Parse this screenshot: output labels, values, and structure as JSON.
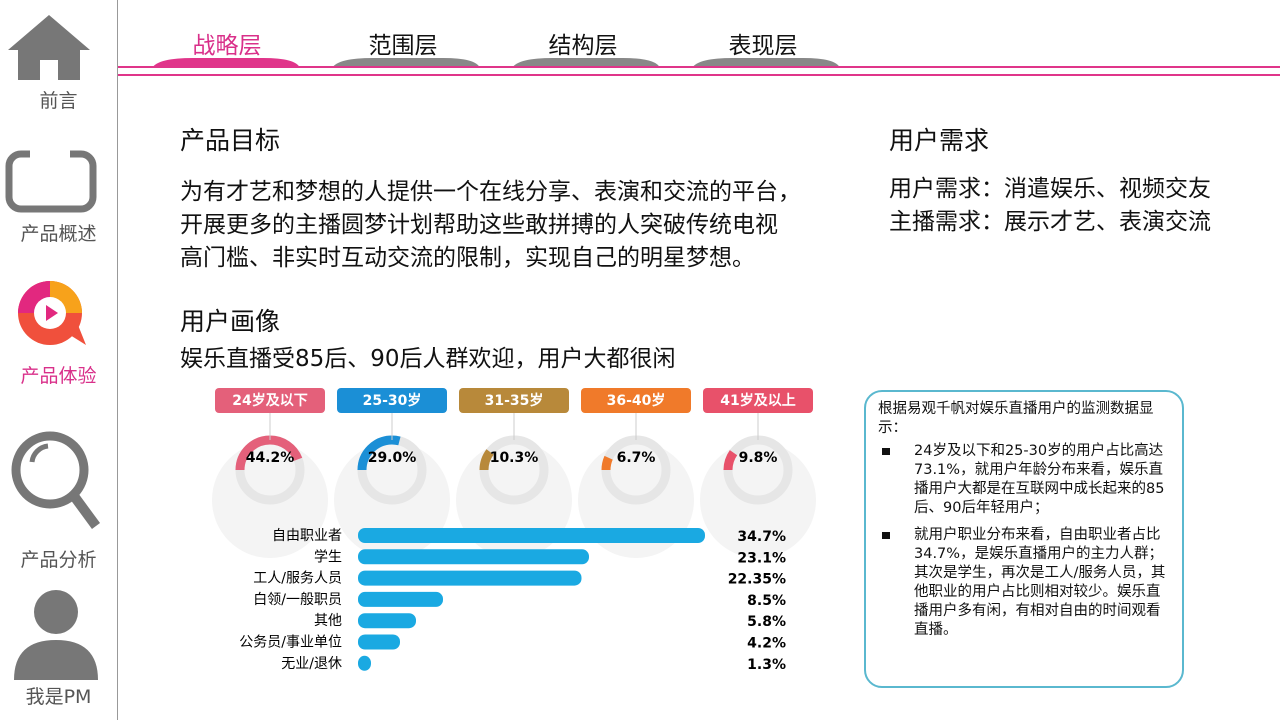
{
  "sidebar": {
    "items": [
      "前言",
      "产品概述",
      "产品体验",
      "产品分析",
      "我是PM"
    ]
  },
  "tabs": [
    "战略层",
    "范围层",
    "结构层",
    "表现层"
  ],
  "product_goal": {
    "title": "产品目标",
    "lines": [
      "为有才艺和梦想的人提供一个在线分享、表演和交流的平台，",
      "开展更多的主播圆梦计划帮助这些敢拼搏的人突破传统电视",
      "高门槛、非实时互动交流的限制，实现自己的明星梦想。"
    ]
  },
  "user_needs": {
    "title": "用户需求",
    "lines": [
      "用户需求：消遣娱乐、视频交友",
      "主播需求：展示才艺、表演交流"
    ]
  },
  "user_portrait": {
    "title": "用户画像",
    "subtitle": "娱乐直播受85后、90后人群欢迎，用户大都很闲"
  },
  "age_chart": {
    "type": "donut",
    "categories": [
      "24岁及以下",
      "25-30岁",
      "31-35岁",
      "36-40岁",
      "41岁及以上"
    ],
    "colors": [
      "#e4607a",
      "#1b8fd6",
      "#b8893a",
      "#f07a2a",
      "#e8516a"
    ],
    "values": [
      44.2,
      29.0,
      10.3,
      6.7,
      9.8
    ],
    "value_labels": [
      "44.2%",
      "29.0%",
      "10.3%",
      "6.7%",
      "9.8%"
    ]
  },
  "occupation_chart": {
    "type": "bar",
    "categories": [
      "自由职业者",
      "学生",
      "工人/服务人员",
      "白领/一般职员",
      "其他",
      "公务员/事业单位",
      "无业/退休"
    ],
    "values": [
      34.7,
      23.1,
      22.35,
      8.5,
      5.8,
      4.2,
      1.3
    ],
    "value_labels": [
      "34.7%",
      "23.1%",
      "22.35%",
      "8.5%",
      "5.8%",
      "4.2%",
      "1.3%"
    ],
    "color": "#1aa9e2"
  },
  "note": {
    "intro": "根据易观千帆对娱乐直播用户的监测数据显示：",
    "bullets": [
      "24岁及以下和25-30岁的用户占比高达73.1%，就用户年龄分布来看，娱乐直播用户大都是在互联网中成长起来的85后、90后年轻用户；",
      "就用户职业分布来看，自由职业者占比34.7%，是娱乐直播用户的主力人群；其次是学生，再次是工人/服务人员，其他职业的用户占比则相对较少。娱乐直播用户多有闲，有相对自由的时间观看直播。"
    ]
  }
}
